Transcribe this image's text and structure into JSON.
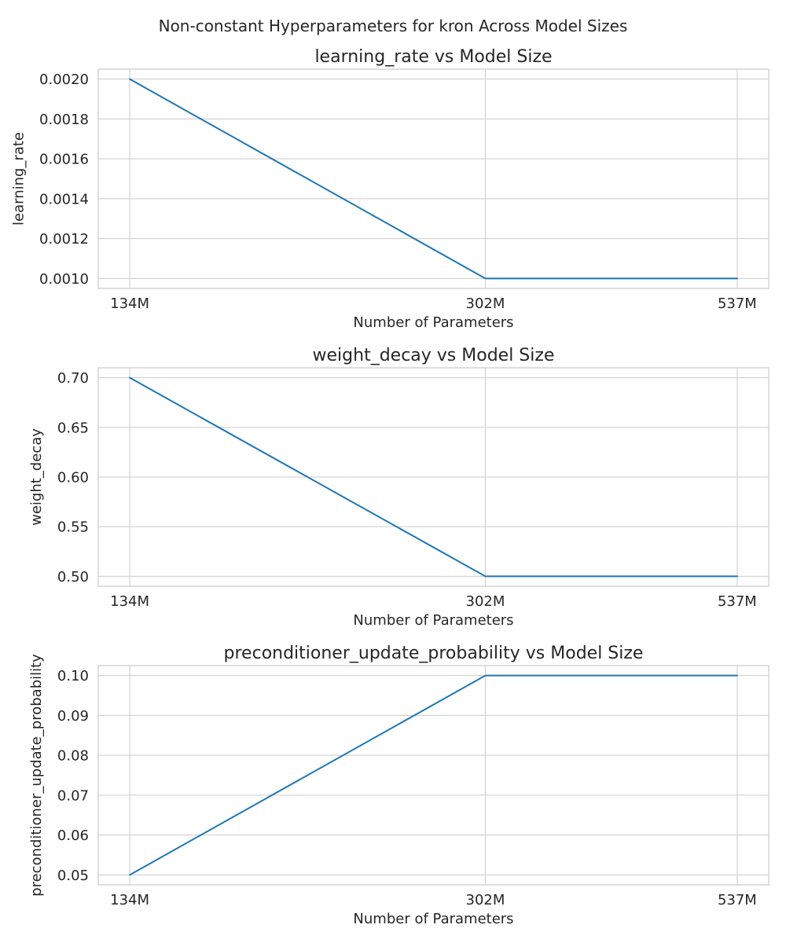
{
  "figure": {
    "suptitle": "Non-constant Hyperparameters for kron Across Model Sizes"
  },
  "style": {
    "line_color": "#1f77b4",
    "grid_color": "#cccccc",
    "text_color": "#262626",
    "grid": true
  },
  "chart_data": [
    {
      "type": "line",
      "title": "learning_rate vs Model Size",
      "xlabel": "Number of Parameters",
      "ylabel": "learning_rate",
      "x_scale": "log",
      "x": [
        134000000,
        302000000,
        537000000
      ],
      "x_tick_labels": [
        "134M",
        "302M",
        "537M"
      ],
      "y": [
        0.002,
        0.001,
        0.001
      ],
      "y_ticks": [
        0.001,
        0.0012,
        0.0014,
        0.0016,
        0.0018,
        0.002
      ],
      "y_tick_labels": [
        "0.0010",
        "0.0012",
        "0.0014",
        "0.0016",
        "0.0018",
        "0.0020"
      ],
      "ylim": [
        0.00095,
        0.00205
      ],
      "grid": true
    },
    {
      "type": "line",
      "title": "weight_decay vs Model Size",
      "xlabel": "Number of Parameters",
      "ylabel": "weight_decay",
      "x_scale": "log",
      "x": [
        134000000,
        302000000,
        537000000
      ],
      "x_tick_labels": [
        "134M",
        "302M",
        "537M"
      ],
      "y": [
        0.7,
        0.5,
        0.5
      ],
      "y_ticks": [
        0.5,
        0.55,
        0.6,
        0.65,
        0.7
      ],
      "y_tick_labels": [
        "0.50",
        "0.55",
        "0.60",
        "0.65",
        "0.70"
      ],
      "ylim": [
        0.49,
        0.71
      ],
      "grid": true
    },
    {
      "type": "line",
      "title": "preconditioner_update_probability vs Model Size",
      "xlabel": "Number of Parameters",
      "ylabel": "preconditioner_update_probability",
      "x_scale": "log",
      "x": [
        134000000,
        302000000,
        537000000
      ],
      "x_tick_labels": [
        "134M",
        "302M",
        "537M"
      ],
      "y": [
        0.05,
        0.1,
        0.1
      ],
      "y_ticks": [
        0.05,
        0.06,
        0.07,
        0.08,
        0.09,
        0.1
      ],
      "y_tick_labels": [
        "0.05",
        "0.06",
        "0.07",
        "0.08",
        "0.09",
        "0.10"
      ],
      "ylim": [
        0.0475,
        0.1025
      ],
      "grid": true
    }
  ]
}
